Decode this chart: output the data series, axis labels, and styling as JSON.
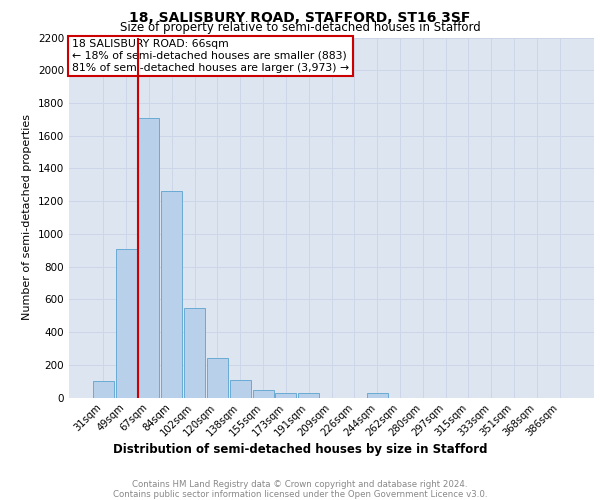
{
  "title": "18, SALISBURY ROAD, STAFFORD, ST16 3SF",
  "subtitle": "Size of property relative to semi-detached houses in Stafford",
  "xlabel": "Distribution of semi-detached houses by size in Stafford",
  "ylabel": "Number of semi-detached properties",
  "bar_labels": [
    "31sqm",
    "49sqm",
    "67sqm",
    "84sqm",
    "102sqm",
    "120sqm",
    "138sqm",
    "155sqm",
    "173sqm",
    "191sqm",
    "209sqm",
    "226sqm",
    "244sqm",
    "262sqm",
    "280sqm",
    "297sqm",
    "315sqm",
    "333sqm",
    "351sqm",
    "368sqm",
    "386sqm"
  ],
  "bar_values": [
    100,
    910,
    1710,
    1260,
    545,
    240,
    105,
    45,
    30,
    25,
    0,
    0,
    25,
    0,
    0,
    0,
    0,
    0,
    0,
    0,
    0
  ],
  "bar_color": "#b8d0ea",
  "bar_edge_color": "#6aaad4",
  "vline_color": "#cc0000",
  "annotation_box_color": "#cc0000",
  "property_label": "18 SALISBURY ROAD: 66sqm",
  "smaller_pct": 18,
  "smaller_count": 883,
  "larger_pct": 81,
  "larger_count": 3973,
  "ylim": [
    0,
    2200
  ],
  "yticks": [
    0,
    200,
    400,
    600,
    800,
    1000,
    1200,
    1400,
    1600,
    1800,
    2000,
    2200
  ],
  "grid_color": "#ccd6e8",
  "bg_color": "#dde5f0",
  "footer_line1": "Contains HM Land Registry data © Crown copyright and database right 2024.",
  "footer_line2": "Contains public sector information licensed under the Open Government Licence v3.0."
}
